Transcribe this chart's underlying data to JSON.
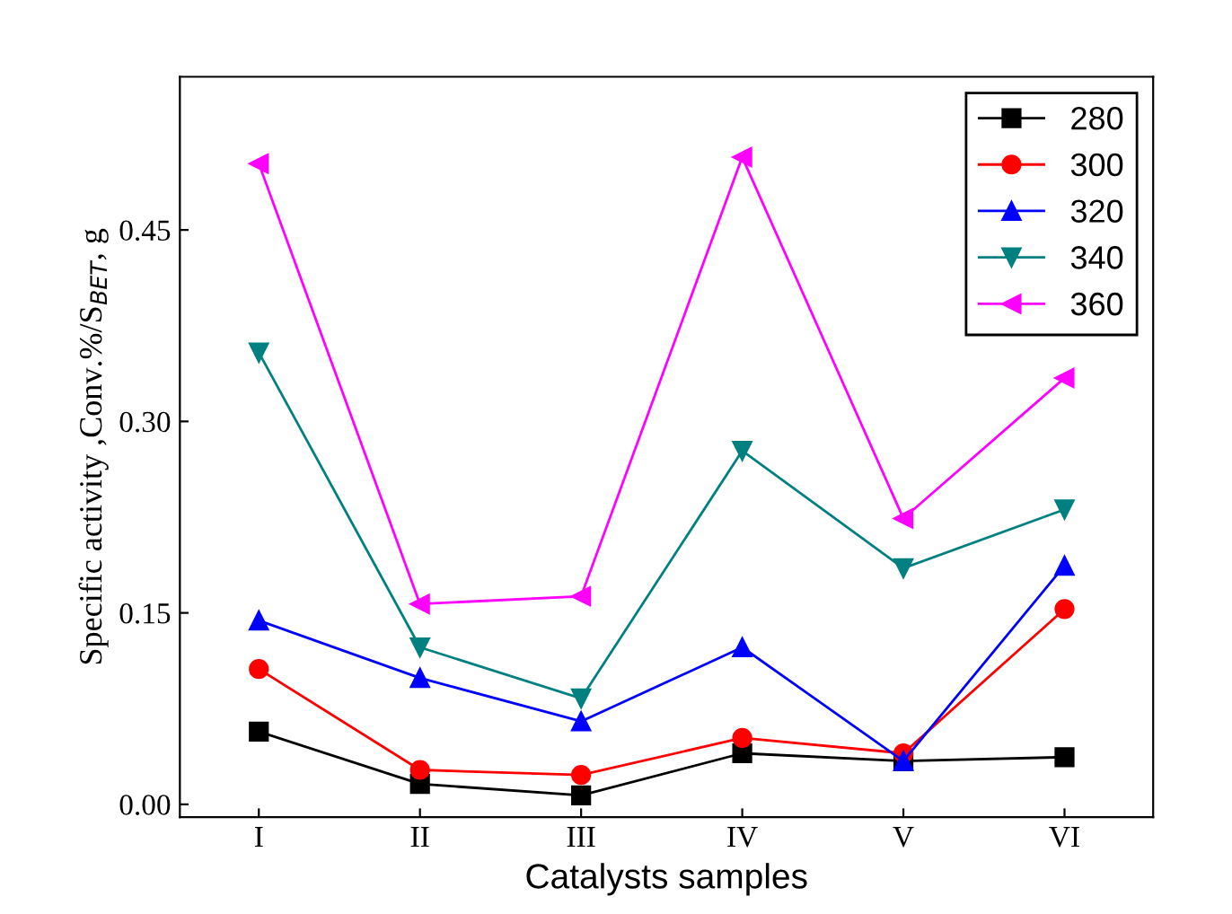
{
  "chart_data": {
    "type": "line",
    "xlabel": "Catalysts samples",
    "ylabel": "Specific activity ,Conv.%/S$_{BET}$, g",
    "categories": [
      "I",
      "II",
      "III",
      "IV",
      "V",
      "VI"
    ],
    "series": [
      {
        "name": "280",
        "color": "#000000",
        "marker": "square",
        "values": [
          0.057,
          0.016,
          0.007,
          0.04,
          0.034,
          0.037
        ]
      },
      {
        "name": "300",
        "color": "#ff0000",
        "marker": "circle",
        "values": [
          0.106,
          0.027,
          0.023,
          0.052,
          0.04,
          0.153
        ]
      },
      {
        "name": "320",
        "color": "#0000ff",
        "marker": "triangle",
        "values": [
          0.144,
          0.099,
          0.065,
          0.123,
          0.034,
          0.187
        ]
      },
      {
        "name": "340",
        "color": "#008080",
        "marker": "triangle_down",
        "values": [
          0.354,
          0.123,
          0.083,
          0.277,
          0.185,
          0.231
        ]
      },
      {
        "name": "360",
        "color": "#ff00ff",
        "marker": "triangle_left",
        "values": [
          0.502,
          0.157,
          0.163,
          0.507,
          0.224,
          0.334
        ]
      }
    ],
    "ylim": [
      -0.01,
      0.57
    ],
    "yticks": [
      {
        "value": 0,
        "label": "0.00"
      },
      {
        "value": 0.15,
        "label": "0.15"
      },
      {
        "value": 0.3,
        "label": "0.30"
      },
      {
        "value": 0.45,
        "label": "0.45"
      }
    ],
    "grid": false,
    "legend": "top right"
  }
}
